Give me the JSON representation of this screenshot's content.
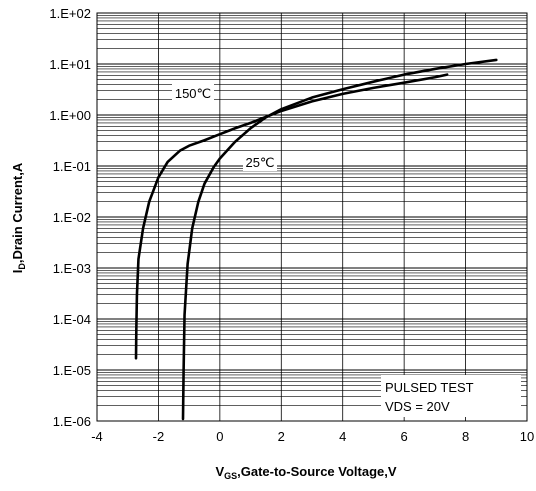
{
  "chart_data": {
    "type": "line",
    "title": "",
    "xlabel": {
      "main": "V",
      "sub": "GS",
      "rest": ",Gate-to-Source Voltage,V"
    },
    "ylabel": {
      "main": "I",
      "sub": "D",
      "rest": ",Drain Current,A"
    },
    "xlim": [
      -4,
      10
    ],
    "ylim": [
      1e-06,
      100
    ],
    "yscale": "log",
    "grid": true,
    "x_ticks": [
      -4,
      -2,
      0,
      2,
      4,
      6,
      8,
      10
    ],
    "x_tick_labels": [
      "-4",
      "-2",
      "0",
      "2",
      "4",
      "6",
      "8",
      "10"
    ],
    "y_ticks": [
      100,
      10,
      1,
      0.1,
      0.01,
      0.001,
      0.0001,
      1e-05,
      1e-06
    ],
    "y_tick_labels": [
      "1.E+02",
      "1.E+01",
      "1.E+00",
      "1.E-01",
      "1.E-02",
      "1.E-03",
      "1.E-04",
      "1.E-05",
      "1.E-06"
    ],
    "series": [
      {
        "name": "150℃",
        "x": [
          -2.73,
          -2.72,
          -2.7,
          -2.65,
          -2.5,
          -2.3,
          -2.0,
          -1.7,
          -1.3,
          -1.0,
          -0.5,
          0.0,
          0.5,
          1.0,
          2.0,
          3.0,
          4.0,
          5.0,
          6.0,
          7.0,
          7.4
        ],
        "y": [
          1.7e-05,
          6e-05,
          0.0003,
          0.0015,
          0.006,
          0.02,
          0.06,
          0.12,
          0.2,
          0.25,
          0.32,
          0.42,
          0.55,
          0.7,
          1.2,
          1.85,
          2.6,
          3.4,
          4.3,
          5.5,
          6.2
        ]
      },
      {
        "name": "25℃",
        "x": [
          -1.2,
          -1.18,
          -1.15,
          -1.05,
          -0.9,
          -0.7,
          -0.5,
          -0.2,
          0.0,
          0.5,
          1.0,
          1.5,
          2.0,
          3.0,
          4.0,
          5.0,
          6.0,
          7.0,
          8.0,
          9.0
        ],
        "y": [
          1.1e-06,
          1e-05,
          0.00012,
          0.0012,
          0.006,
          0.02,
          0.045,
          0.095,
          0.14,
          0.3,
          0.55,
          0.9,
          1.3,
          2.2,
          3.2,
          4.5,
          6.2,
          8.0,
          10.0,
          12.0
        ]
      }
    ],
    "annotations": {
      "label_150": "150℃",
      "label_25": "25℃",
      "test_line1": "PULSED TEST",
      "test_line2": "VDS = 20V"
    }
  }
}
